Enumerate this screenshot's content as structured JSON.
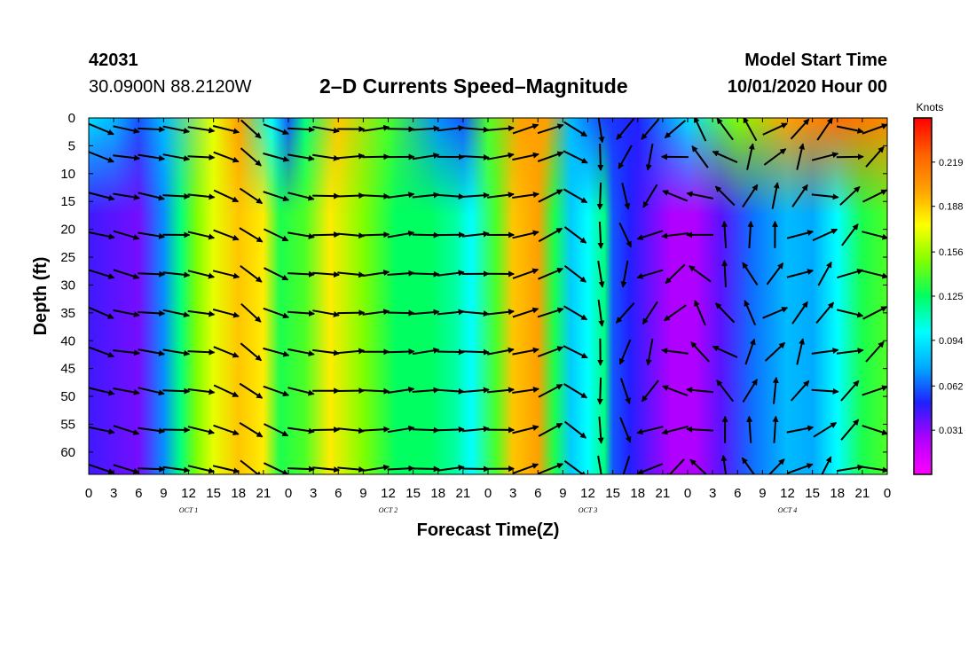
{
  "header": {
    "station_id": "42031",
    "coords": "30.0900N 88.2120W",
    "title": "2–D Currents Speed–Magnitude",
    "start_label": "Model Start Time",
    "start_value": "10/01/2020 Hour 00"
  },
  "chart_data": {
    "type": "heatmap",
    "title": "2–D Currents Speed–Magnitude",
    "xlabel": "Forecast Time(Z)",
    "ylabel": "Depth (ft)",
    "colorbar_label": "Knots",
    "x_tick_labels": [
      "0",
      "3",
      "6",
      "9",
      "12",
      "15",
      "18",
      "21",
      "0",
      "3",
      "6",
      "9",
      "12",
      "15",
      "18",
      "21",
      "0",
      "3",
      "6",
      "9",
      "12",
      "15",
      "18",
      "21",
      "0",
      "3",
      "6",
      "9",
      "12",
      "15",
      "18",
      "21",
      "0"
    ],
    "x_range_hours": [
      0,
      96
    ],
    "day_labels": [
      {
        "text": "OCT 1",
        "hour": 12
      },
      {
        "text": "OCT 2",
        "hour": 36
      },
      {
        "text": "OCT 3",
        "hour": 60
      },
      {
        "text": "OCT 4",
        "hour": 84
      }
    ],
    "y_ticks": [
      0,
      5,
      10,
      15,
      20,
      25,
      30,
      35,
      40,
      45,
      50,
      55,
      60
    ],
    "y_range_ft": [
      0,
      64
    ],
    "colorbar_ticks": [
      "0.219",
      "0.188",
      "0.156",
      "0.125",
      "0.094",
      "0.062",
      "0.031"
    ],
    "colorbar_range": [
      0.0,
      0.25
    ],
    "colormap": [
      "#ff00ff",
      "#b000ff",
      "#2020ff",
      "#00aaff",
      "#00ffff",
      "#00ff60",
      "#80ff00",
      "#ffff00",
      "#ffa000",
      "#ff6000",
      "#ff0000"
    ],
    "speed_profile_by_hour": [
      {
        "hour": 0,
        "speed": 0.045
      },
      {
        "hour": 6,
        "speed": 0.035
      },
      {
        "hour": 9,
        "speed": 0.07
      },
      {
        "hour": 11,
        "speed": 0.12
      },
      {
        "hour": 13,
        "speed": 0.15
      },
      {
        "hour": 15,
        "speed": 0.17
      },
      {
        "hour": 18,
        "speed": 0.19
      },
      {
        "hour": 21,
        "speed": 0.18
      },
      {
        "hour": 23,
        "speed": 0.13
      },
      {
        "hour": 26,
        "speed": 0.14
      },
      {
        "hour": 29,
        "speed": 0.18
      },
      {
        "hour": 33,
        "speed": 0.15
      },
      {
        "hour": 37,
        "speed": 0.125
      },
      {
        "hour": 41,
        "speed": 0.125
      },
      {
        "hour": 44,
        "speed": 0.115
      },
      {
        "hour": 46,
        "speed": 0.1
      },
      {
        "hour": 49,
        "speed": 0.14
      },
      {
        "hour": 51,
        "speed": 0.19
      },
      {
        "hour": 54,
        "speed": 0.2
      },
      {
        "hour": 56,
        "speed": 0.13
      },
      {
        "hour": 58,
        "speed": 0.085
      },
      {
        "hour": 60,
        "speed": 0.1
      },
      {
        "hour": 62,
        "speed": 0.12
      },
      {
        "hour": 63,
        "speed": 0.06
      },
      {
        "hour": 65,
        "speed": 0.05
      },
      {
        "hour": 67,
        "speed": 0.04
      },
      {
        "hour": 70,
        "speed": 0.025
      },
      {
        "hour": 73,
        "speed": 0.025
      },
      {
        "hour": 76,
        "speed": 0.04
      },
      {
        "hour": 80,
        "speed": 0.065
      },
      {
        "hour": 84,
        "speed": 0.08
      },
      {
        "hour": 87,
        "speed": 0.075
      },
      {
        "hour": 90,
        "speed": 0.1
      },
      {
        "hour": 93,
        "speed": 0.13
      },
      {
        "hour": 96,
        "speed": 0.14
      }
    ],
    "surface_speed_profile_by_hour": [
      {
        "hour": 0,
        "speed": 0.09
      },
      {
        "hour": 3,
        "speed": 0.08
      },
      {
        "hour": 6,
        "speed": 0.06
      },
      {
        "hour": 9,
        "speed": 0.08
      },
      {
        "hour": 15,
        "speed": 0.17
      },
      {
        "hour": 18,
        "speed": 0.2
      },
      {
        "hour": 22,
        "speed": 0.1
      },
      {
        "hour": 24,
        "speed": 0.06
      },
      {
        "hour": 26,
        "speed": 0.12
      },
      {
        "hour": 30,
        "speed": 0.19
      },
      {
        "hour": 36,
        "speed": 0.14
      },
      {
        "hour": 42,
        "speed": 0.07
      },
      {
        "hour": 45,
        "speed": 0.06
      },
      {
        "hour": 48,
        "speed": 0.14
      },
      {
        "hour": 52,
        "speed": 0.2
      },
      {
        "hour": 55,
        "speed": 0.2
      },
      {
        "hour": 58,
        "speed": 0.08
      },
      {
        "hour": 62,
        "speed": 0.055
      },
      {
        "hour": 66,
        "speed": 0.05
      },
      {
        "hour": 72,
        "speed": 0.09
      },
      {
        "hour": 78,
        "speed": 0.15
      },
      {
        "hour": 84,
        "speed": 0.2
      },
      {
        "hour": 90,
        "speed": 0.22
      },
      {
        "hour": 96,
        "speed": 0.21
      }
    ],
    "vector_rows_ft": [
      2,
      7,
      14,
      21,
      28,
      35,
      42,
      49,
      56,
      63
    ],
    "vector_dir_deg_by_hour": [
      {
        "hour": 0,
        "dir": 20
      },
      {
        "hour": 9,
        "dir": 5
      },
      {
        "hour": 15,
        "dir": 10
      },
      {
        "hour": 20,
        "dir": 40
      },
      {
        "hour": 24,
        "dir": 10
      },
      {
        "hour": 36,
        "dir": -5
      },
      {
        "hour": 48,
        "dir": 0
      },
      {
        "hour": 56,
        "dir": -25
      },
      {
        "hour": 61,
        "dir": 90
      },
      {
        "hour": 63,
        "dir": 75
      },
      {
        "hour": 66,
        "dir": 120
      },
      {
        "hour": 70,
        "dir": 160
      },
      {
        "hour": 74,
        "dir": 220
      },
      {
        "hour": 78,
        "dir": 250
      },
      {
        "hour": 82,
        "dir": 300
      },
      {
        "hour": 88,
        "dir": 330
      },
      {
        "hour": 96,
        "dir": 350
      }
    ]
  }
}
